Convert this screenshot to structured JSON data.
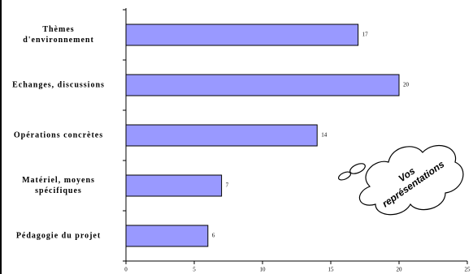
{
  "chart_data": {
    "type": "bar",
    "orientation": "horizontal",
    "categories": [
      "Thèmes\nd'environnement",
      "Echanges, discussions",
      "Opérations concrètes",
      "Matériel, moyens\nspécifiques",
      "Pédagogie du projet"
    ],
    "values": [
      17,
      20,
      14,
      7,
      6
    ],
    "color": "#9999ff",
    "xlim": [
      0,
      25
    ],
    "xticks": [
      0,
      5,
      10,
      15,
      20,
      25
    ],
    "annotation": "Vos\nreprésentations"
  }
}
